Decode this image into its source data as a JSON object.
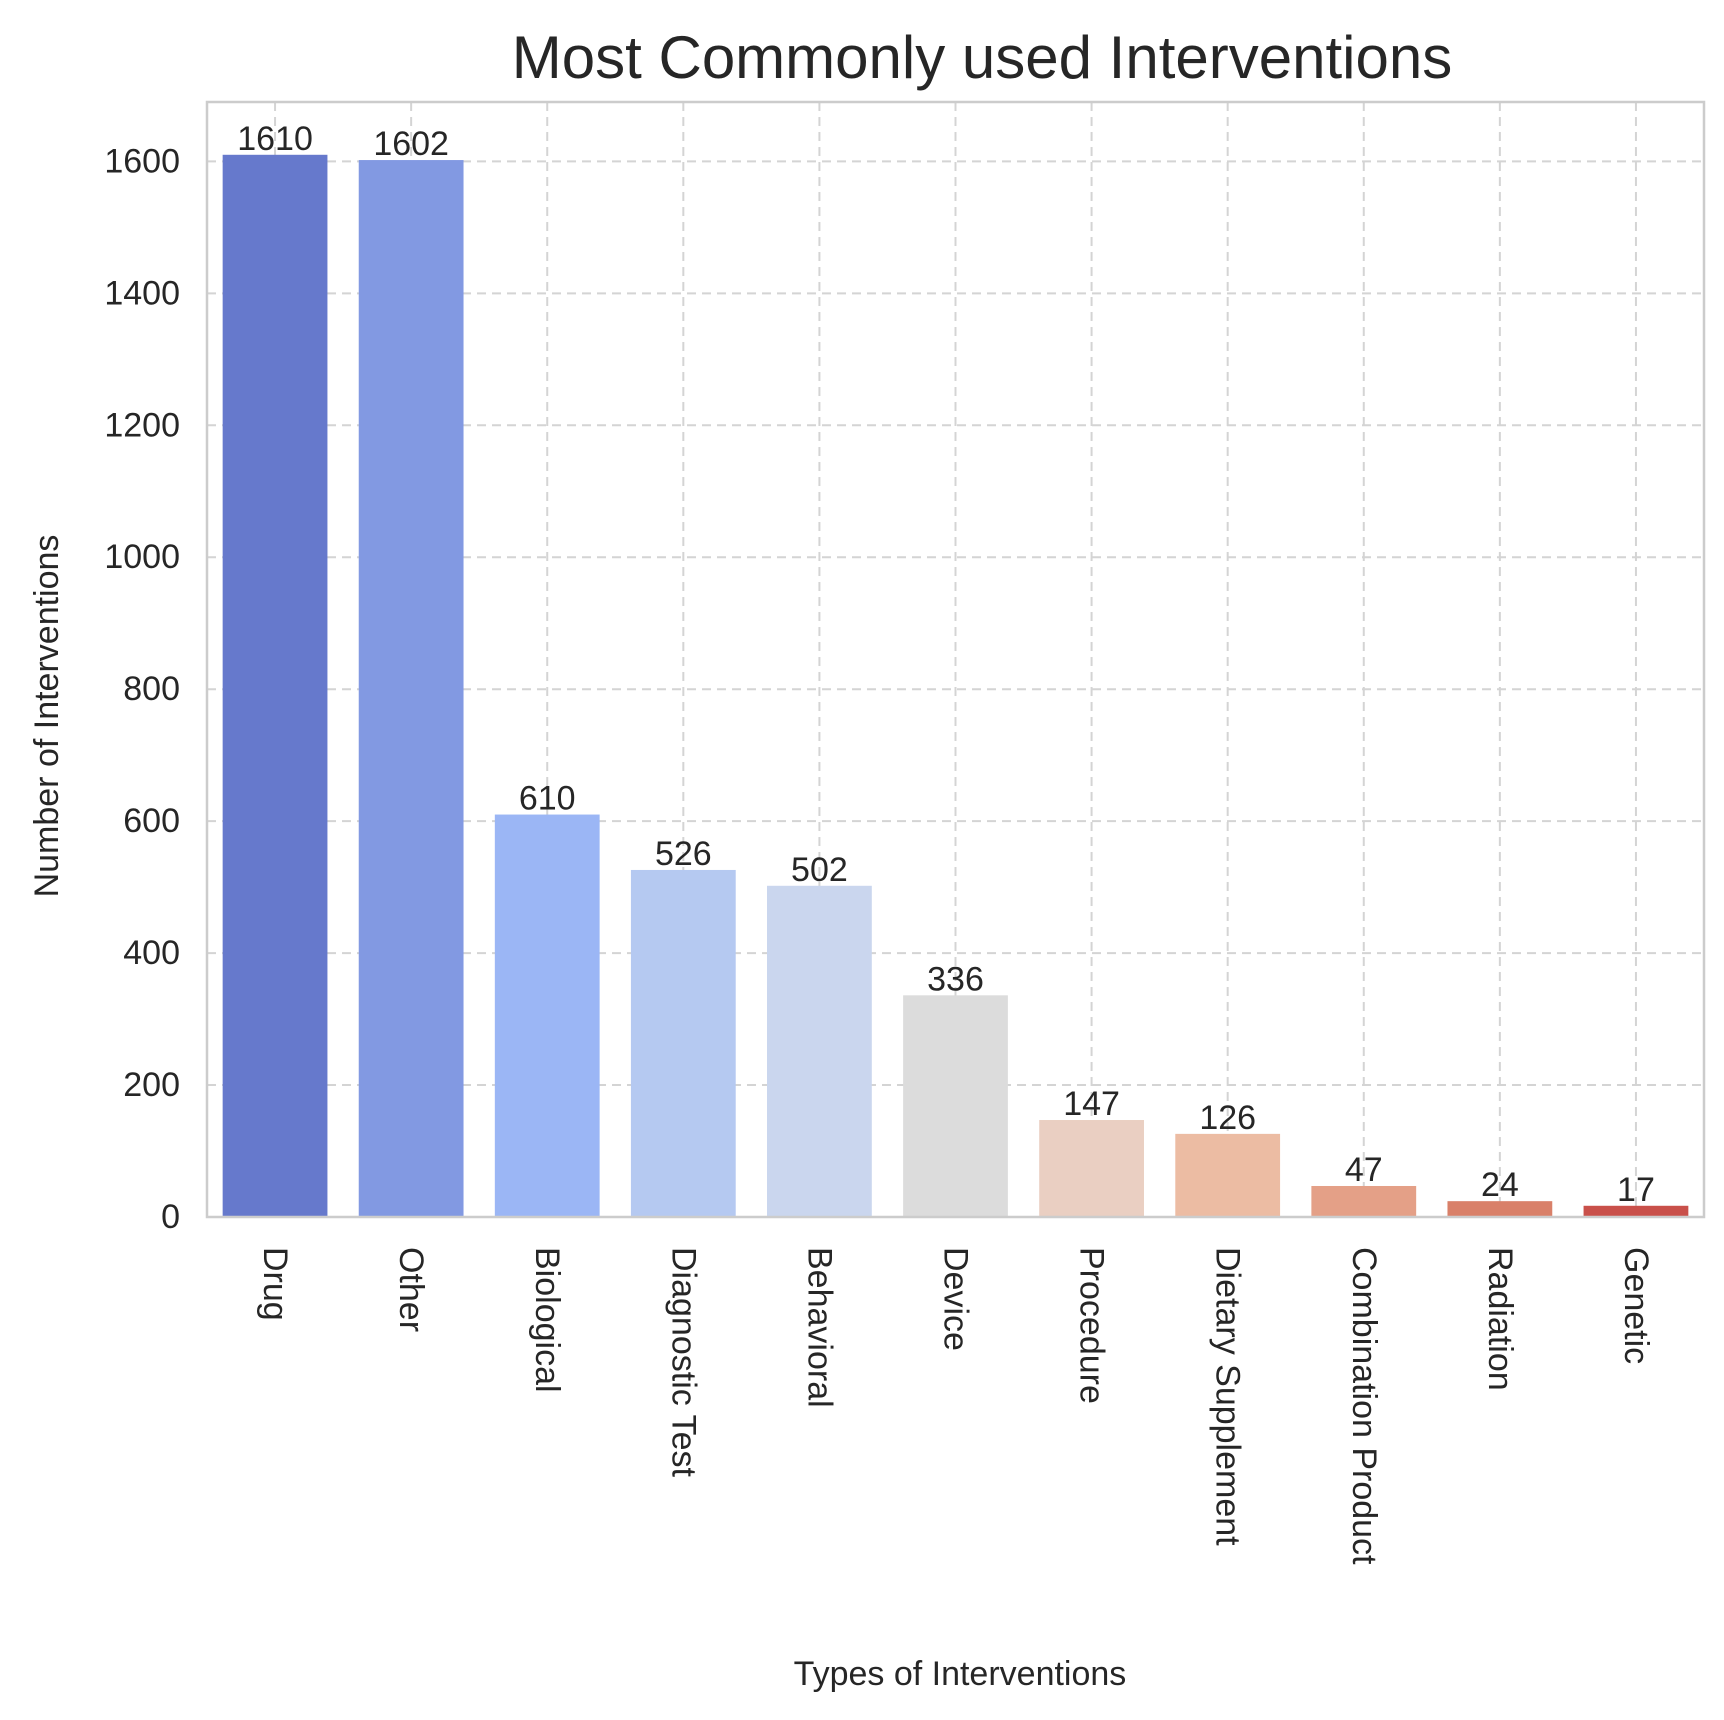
{
  "chart_data": {
    "type": "bar",
    "title": "Most Commonly used Interventions",
    "xlabel": "Types of Interventions",
    "ylabel": "Number of Interventions",
    "categories": [
      "Drug",
      "Other",
      "Biological",
      "Diagnostic Test",
      "Behavioral",
      "Device",
      "Procedure",
      "Dietary Supplement",
      "Combination Product",
      "Radiation",
      "Genetic"
    ],
    "values": [
      1610,
      1602,
      610,
      526,
      502,
      336,
      147,
      126,
      47,
      24,
      17
    ],
    "data_labels": [
      "1610",
      "1602",
      "610",
      "526",
      "502",
      "336",
      "147",
      "126",
      "47",
      "24",
      "17"
    ],
    "colors": [
      "#6679cc",
      "#8299e2",
      "#9bb6f5",
      "#b5c9f1",
      "#cad6ee",
      "#dcdcdc",
      "#eacfc2",
      "#ecbca3",
      "#e4a087",
      "#d98069",
      "#c9504a"
    ],
    "yticks": [
      0,
      200,
      400,
      600,
      800,
      1000,
      1200,
      1400,
      1600
    ],
    "ytick_labels": [
      "0",
      "200",
      "400",
      "600",
      "800",
      "1000",
      "1200",
      "1400",
      "1600"
    ],
    "ylim": [
      0,
      1690
    ],
    "grid": true,
    "xtick_rotation_deg": 90
  }
}
